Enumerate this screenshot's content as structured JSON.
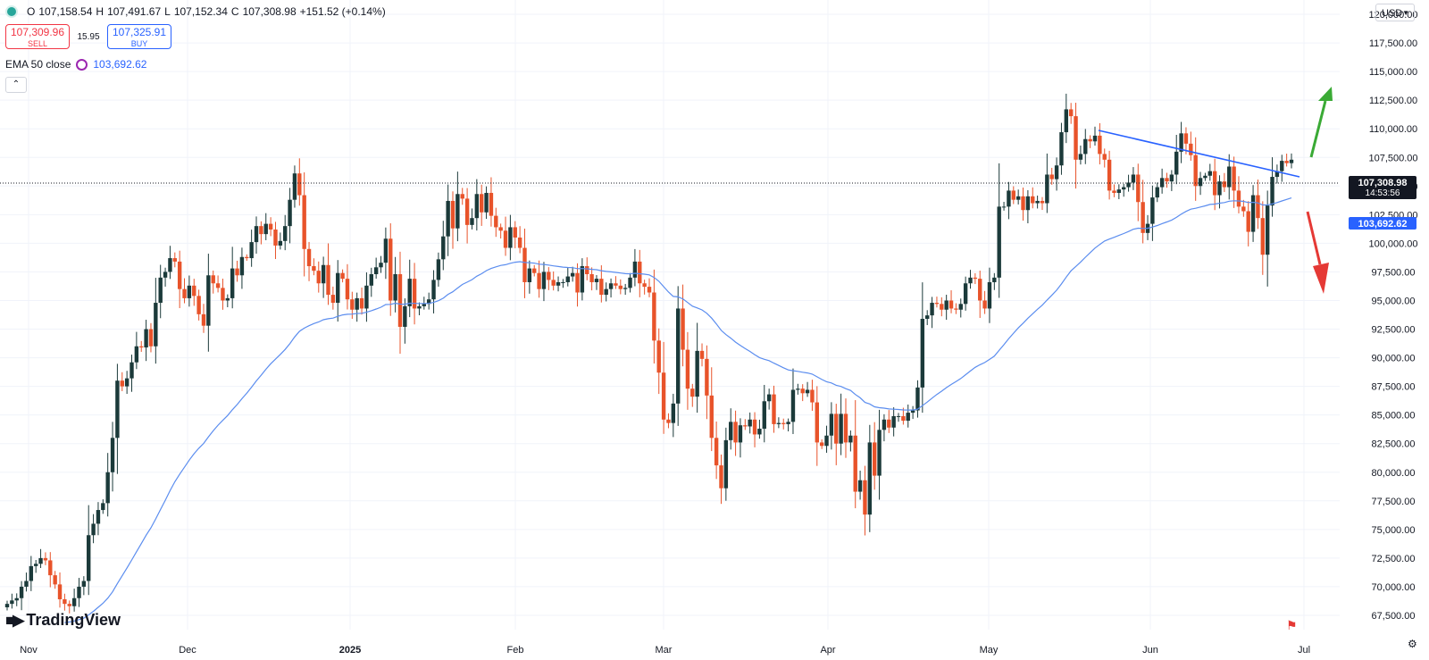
{
  "header": {
    "open_label": "O",
    "open": "107,158.54",
    "high_label": "H",
    "high": "107,491.67",
    "low_label": "L",
    "low": "107,152.34",
    "close_label": "C",
    "close": "107,308.98",
    "change": "+151.52 (+0.14%)"
  },
  "trade": {
    "sell_price": "107,309.96",
    "sell_label": "SELL",
    "spread": "15.95",
    "buy_price": "107,325.91",
    "buy_label": "BUY"
  },
  "indicator": {
    "name": "EMA 50 close",
    "value": "103,692.62"
  },
  "collapse_icon": "chevron-up-icon",
  "currency": "USD",
  "brand": "TradingView",
  "colors": {
    "up": "#1b3a3a",
    "down": "#e8532a",
    "ema": "#5b8def",
    "trendline": "#2962ff",
    "arrow_up": "#3aaa35",
    "arrow_down": "#e53935",
    "grid": "#f0f3fa"
  },
  "chart_data": {
    "type": "candlestick",
    "y_axis": {
      "min": 66250,
      "max": 121250,
      "position": "right",
      "ticks": [
        "67,500.00",
        "70,000.00",
        "72,500.00",
        "75,000.00",
        "77,500.00",
        "80,000.00",
        "82,500.00",
        "85,000.00",
        "87,500.00",
        "90,000.00",
        "92,500.00",
        "95,000.00",
        "97,500.00",
        "100,000.00",
        "102,500.00",
        "105,000.00",
        "107,500.00",
        "110,000.00",
        "112,500.00",
        "115,000.00",
        "117,500.00",
        "120,000.00"
      ]
    },
    "x_axis": {
      "labels": [
        "Nov",
        "Dec",
        "2025",
        "Feb",
        "Mar",
        "Apr",
        "May",
        "Jun",
        "Jul"
      ]
    },
    "last_price": {
      "value": 107308.98,
      "label": "107,308.98",
      "countdown": "14:53:56"
    },
    "ema_label": {
      "value": 103692.62,
      "label": "103,692.62"
    },
    "close_series": [
      68500,
      68800,
      69000,
      70000,
      70500,
      71800,
      72000,
      72500,
      72300,
      71000,
      70200,
      68900,
      68500,
      68300,
      69000,
      70000,
      70500,
      74500,
      75500,
      76700,
      77300,
      80000,
      83000,
      88000,
      87500,
      88200,
      89600,
      91000,
      90900,
      92500,
      91000,
      94800,
      97000,
      97500,
      98700,
      98400,
      96000,
      95200,
      96300,
      95400,
      93800,
      92800,
      97200,
      96500,
      96100,
      95000,
      95200,
      97800,
      97200,
      98800,
      98700,
      100100,
      101500,
      100800,
      101700,
      101200,
      99800,
      100200,
      101500,
      103800,
      106100,
      104200,
      99500,
      98000,
      97600,
      96500,
      98100,
      95500,
      94800,
      97400,
      96900,
      95100,
      94200,
      95200,
      94300,
      96300,
      97300,
      97900,
      98300,
      100400,
      95000,
      97300,
      92700,
      94500,
      96900,
      94300,
      94500,
      94700,
      95100,
      96800,
      98600,
      100600,
      103700,
      101300,
      104300,
      103900,
      101600,
      102200,
      104300,
      102700,
      104400,
      102400,
      101400,
      101100,
      99600,
      101400,
      100500,
      99600,
      96600,
      97800,
      97400,
      96000,
      97500,
      96800,
      96300,
      96600,
      96600,
      97100,
      97400,
      95700,
      98000,
      97300,
      96600,
      96900,
      95500,
      96000,
      96500,
      96300,
      96000,
      96100,
      97000,
      98400,
      96500,
      96200,
      95700,
      91500,
      88700,
      84600,
      84300,
      86000,
      94300,
      90700,
      87300,
      86600,
      90600,
      89900,
      86700,
      83000,
      80600,
      78600,
      82800,
      84400,
      82600,
      84100,
      84000,
      84600,
      83300,
      83800,
      86200,
      86800,
      84200,
      84300,
      84200,
      84400,
      87200,
      87300,
      86900,
      87200,
      86100,
      82600,
      82300,
      83200,
      85100,
      82500,
      85100,
      82600,
      83200,
      78300,
      79300,
      76300,
      82600,
      79700,
      83700,
      84600,
      83900,
      84900,
      84900,
      84500,
      85200,
      85400,
      87400,
      93400,
      93700,
      94800,
      94700,
      94200,
      95000,
      94300,
      94200,
      94700,
      96500,
      97000,
      96900,
      95000,
      94300,
      96600,
      97000,
      103200,
      103200,
      104600,
      103800,
      104100,
      102900,
      104100,
      103500,
      103700,
      103500,
      106000,
      105600,
      106800,
      109700,
      111700,
      111100,
      107300,
      107800,
      109100,
      108900,
      109400,
      107800,
      107300,
      104600,
      104400,
      104700,
      104900,
      105300,
      106000,
      103600,
      100900,
      101700,
      104000,
      104900,
      105700,
      105400,
      106000,
      108000,
      109600,
      108700,
      107700,
      105000,
      105700,
      105900,
      106300,
      104200,
      105400,
      104900,
      106700,
      104600,
      103200,
      102800,
      101000,
      104200,
      102200,
      99000,
      103300,
      105800,
      106300,
      107200,
      107000,
      107300
    ],
    "ema_period": 50
  }
}
